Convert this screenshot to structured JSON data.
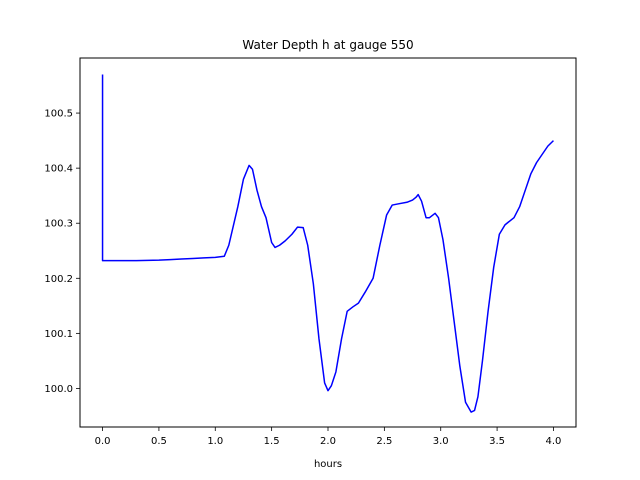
{
  "chart_data": {
    "type": "line",
    "title": "Water Depth h at gauge 550",
    "xlabel": "hours",
    "ylabel": "",
    "xlim": [
      -0.2,
      4.2
    ],
    "ylim": [
      99.93,
      100.6
    ],
    "xticks": [
      0.0,
      0.5,
      1.0,
      1.5,
      2.0,
      2.5,
      3.0,
      3.5,
      4.0
    ],
    "xtick_labels": [
      "0.0",
      "0.5",
      "1.0",
      "1.5",
      "2.0",
      "2.5",
      "3.0",
      "3.5",
      "4.0"
    ],
    "yticks": [
      100.0,
      100.1,
      100.2,
      100.3,
      100.4,
      100.5
    ],
    "ytick_labels": [
      "100.0",
      "100.1",
      "100.2",
      "100.3",
      "100.4",
      "100.5"
    ],
    "grid": false,
    "series": [
      {
        "color": "#0000ff",
        "x": [
          0.0,
          0.0,
          0.005,
          0.1,
          0.3,
          0.5,
          0.6,
          0.7,
          0.8,
          0.9,
          1.0,
          1.08,
          1.12,
          1.2,
          1.25,
          1.3,
          1.33,
          1.37,
          1.41,
          1.45,
          1.5,
          1.53,
          1.57,
          1.62,
          1.68,
          1.73,
          1.78,
          1.82,
          1.87,
          1.92,
          1.97,
          2.0,
          2.03,
          2.07,
          2.12,
          2.17,
          2.22,
          2.27,
          2.33,
          2.4,
          2.46,
          2.52,
          2.57,
          2.62,
          2.7,
          2.75,
          2.78,
          2.8,
          2.83,
          2.87,
          2.9,
          2.95,
          2.98,
          3.02,
          3.07,
          3.12,
          3.17,
          3.22,
          3.27,
          3.3,
          3.33,
          3.37,
          3.42,
          3.47,
          3.52,
          3.57,
          3.6,
          3.65,
          3.7,
          3.75,
          3.8,
          3.85,
          3.9,
          3.95,
          4.0
        ],
        "y": [
          100.57,
          100.232,
          100.232,
          100.232,
          100.232,
          100.233,
          100.234,
          100.235,
          100.236,
          100.237,
          100.238,
          100.24,
          100.26,
          100.33,
          100.38,
          100.405,
          100.398,
          100.36,
          100.33,
          100.31,
          100.265,
          100.256,
          100.26,
          100.268,
          100.28,
          100.293,
          100.292,
          100.26,
          100.19,
          100.09,
          100.01,
          99.996,
          100.005,
          100.03,
          100.09,
          100.14,
          100.148,
          100.155,
          100.175,
          100.2,
          100.26,
          100.315,
          100.333,
          100.335,
          100.338,
          100.342,
          100.347,
          100.352,
          100.34,
          100.31,
          100.31,
          100.318,
          100.31,
          100.27,
          100.2,
          100.12,
          100.04,
          99.975,
          99.957,
          99.96,
          99.985,
          100.05,
          100.14,
          100.22,
          100.28,
          100.297,
          100.302,
          100.31,
          100.33,
          100.36,
          100.39,
          100.41,
          100.425,
          100.44,
          100.45
        ]
      }
    ]
  }
}
